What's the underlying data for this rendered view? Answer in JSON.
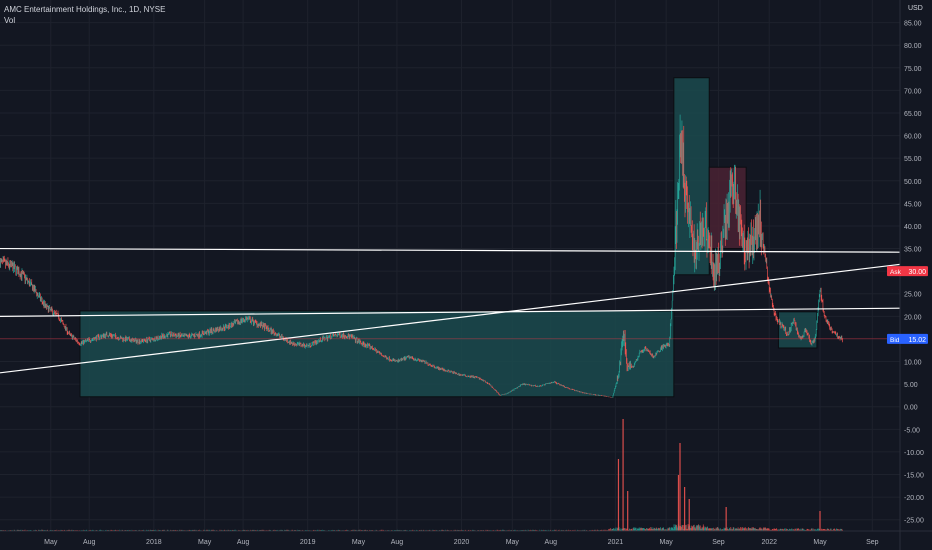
{
  "header": {
    "title": "AMC Entertainment Holdings, Inc., 1D, NYSE",
    "vol_label": "Vol",
    "currency": "USD"
  },
  "price_tags": {
    "ask": {
      "label": "Ask",
      "value": "30.00",
      "color": "#f23645"
    },
    "bid": {
      "label": "Bid",
      "value": "15.02",
      "color": "#2962ff"
    }
  },
  "colors": {
    "background": "#131722",
    "up": "#26a69a",
    "down": "#ef5350",
    "box_teal": "#1b4a4d",
    "box_red": "#4a2233",
    "trendline": "#ffffff"
  },
  "chart_data": {
    "type": "candlestick",
    "title": "AMC Entertainment Holdings, Inc., 1D, NYSE",
    "ylim": [
      -27.5,
      90
    ],
    "yticks": [
      "-25.00",
      "-20.00",
      "-15.00",
      "-10.00",
      "-5.00",
      "0.00",
      "5.00",
      "10.00",
      "15.00",
      "20.00",
      "25.00",
      "30.00",
      "35.00",
      "40.00",
      "45.00",
      "50.00",
      "55.00",
      "60.00",
      "65.00",
      "70.00",
      "75.00",
      "80.00",
      "85.00"
    ],
    "x_ticks": [
      "May",
      "Aug",
      "2018",
      "May",
      "Aug",
      "2019",
      "May",
      "Aug",
      "2020",
      "May",
      "Aug",
      "2021",
      "May",
      "Sep",
      "2022",
      "May",
      "Sep"
    ],
    "x_tick_times": [
      2017.33,
      2017.58,
      2018.0,
      2018.33,
      2018.58,
      2019.0,
      2019.33,
      2019.58,
      2020.0,
      2020.33,
      2020.58,
      2021.0,
      2021.33,
      2021.67,
      2022.0,
      2022.33,
      2022.67
    ],
    "xlim": [
      2017.0,
      2022.85
    ],
    "price_path": [
      [
        2017.0,
        32
      ],
      [
        2017.08,
        31
      ],
      [
        2017.15,
        29
      ],
      [
        2017.22,
        26
      ],
      [
        2017.3,
        22
      ],
      [
        2017.38,
        20
      ],
      [
        2017.45,
        16
      ],
      [
        2017.52,
        14
      ],
      [
        2017.6,
        15
      ],
      [
        2017.7,
        16
      ],
      [
        2017.8,
        15
      ],
      [
        2017.9,
        14.5
      ],
      [
        2018.0,
        15
      ],
      [
        2018.1,
        16
      ],
      [
        2018.2,
        15.5
      ],
      [
        2018.3,
        16
      ],
      [
        2018.4,
        17
      ],
      [
        2018.5,
        18
      ],
      [
        2018.6,
        19.5
      ],
      [
        2018.7,
        18
      ],
      [
        2018.8,
        16
      ],
      [
        2018.9,
        14
      ],
      [
        2019.0,
        13.5
      ],
      [
        2019.1,
        15
      ],
      [
        2019.2,
        16
      ],
      [
        2019.28,
        15.5
      ],
      [
        2019.35,
        14
      ],
      [
        2019.42,
        13
      ],
      [
        2019.5,
        11
      ],
      [
        2019.58,
        10
      ],
      [
        2019.66,
        11
      ],
      [
        2019.75,
        10
      ],
      [
        2019.85,
        8.5
      ],
      [
        2020.0,
        7
      ],
      [
        2020.1,
        6.5
      ],
      [
        2020.18,
        5
      ],
      [
        2020.25,
        2.5
      ],
      [
        2020.3,
        3
      ],
      [
        2020.4,
        5
      ],
      [
        2020.5,
        4.5
      ],
      [
        2020.6,
        5.5
      ],
      [
        2020.7,
        4
      ],
      [
        2020.8,
        3
      ],
      [
        2020.9,
        2.5
      ],
      [
        2020.98,
        2
      ],
      [
        2021.02,
        7
      ],
      [
        2021.05,
        17
      ],
      [
        2021.08,
        8
      ],
      [
        2021.12,
        9
      ],
      [
        2021.16,
        12
      ],
      [
        2021.2,
        13
      ],
      [
        2021.25,
        11
      ],
      [
        2021.3,
        13
      ],
      [
        2021.35,
        14
      ],
      [
        2021.38,
        30
      ],
      [
        2021.42,
        58
      ],
      [
        2021.45,
        50
      ],
      [
        2021.48,
        42
      ],
      [
        2021.52,
        33
      ],
      [
        2021.56,
        40
      ],
      [
        2021.6,
        38
      ],
      [
        2021.64,
        29
      ],
      [
        2021.68,
        33
      ],
      [
        2021.72,
        42
      ],
      [
        2021.76,
        50
      ],
      [
        2021.79,
        45
      ],
      [
        2021.82,
        38
      ],
      [
        2021.86,
        34
      ],
      [
        2021.9,
        38
      ],
      [
        2021.94,
        41
      ],
      [
        2021.97,
        34
      ],
      [
        2022.0,
        26
      ],
      [
        2022.04,
        20
      ],
      [
        2022.08,
        18
      ],
      [
        2022.12,
        16
      ],
      [
        2022.16,
        19
      ],
      [
        2022.2,
        15
      ],
      [
        2022.24,
        17
      ],
      [
        2022.27,
        14
      ],
      [
        2022.3,
        15
      ],
      [
        2022.33,
        26
      ],
      [
        2022.36,
        20
      ],
      [
        2022.4,
        17
      ],
      [
        2022.45,
        15.5
      ],
      [
        2022.48,
        15
      ]
    ],
    "volume_spikes": [
      [
        2021.02,
        18
      ],
      [
        2021.05,
        28
      ],
      [
        2021.08,
        10
      ],
      [
        2021.41,
        14
      ],
      [
        2021.42,
        22
      ],
      [
        2021.45,
        11
      ],
      [
        2021.48,
        8
      ],
      [
        2021.72,
        6
      ],
      [
        2022.33,
        5
      ]
    ],
    "drawn_boxes": [
      {
        "t0": 2017.52,
        "t1": 2021.38,
        "p0": 2.2,
        "p1": 21.2,
        "color": "teal"
      },
      {
        "t0": 2021.38,
        "t1": 2021.61,
        "p0": 29.2,
        "p1": 72.8,
        "color": "teal"
      },
      {
        "t0": 2021.61,
        "t1": 2021.85,
        "p0": 35.0,
        "p1": 53.0,
        "color": "red"
      },
      {
        "t0": 2022.06,
        "t1": 2022.31,
        "p0": 13.0,
        "p1": 21.0,
        "color": "teal"
      }
    ],
    "drawn_lines": [
      {
        "t0": 2017.0,
        "p0": 35.0,
        "t1": 2022.85,
        "p1": 34.2
      },
      {
        "t0": 2017.0,
        "p0": 20.0,
        "t1": 2022.85,
        "p1": 21.8
      },
      {
        "t0": 2017.0,
        "p0": 7.5,
        "t1": 2022.85,
        "p1": 31.5
      }
    ],
    "reference_prices": [
      {
        "price": 30.0,
        "label": "Ask"
      },
      {
        "price": 15.02,
        "label": "Bid"
      }
    ]
  }
}
